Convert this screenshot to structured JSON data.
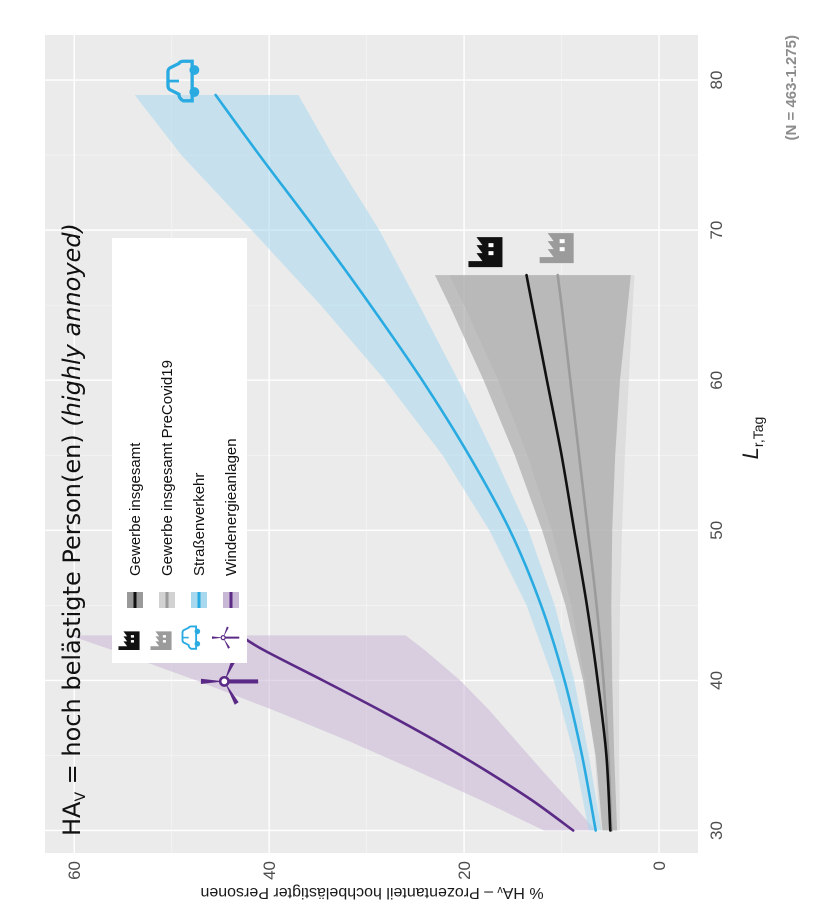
{
  "chart_data": {
    "type": "line",
    "title": {
      "prefix": "HA",
      "subscript": "V",
      "main": " =  hoch belästigte Person(en) ",
      "italic": "(highly annoyed)"
    },
    "xlabel": {
      "main": "L",
      "subscript": "r,Tag"
    },
    "ylabel": "% HAᵥ – Prozentanteil hochbelästigter Personen",
    "note": "(N = 463-1.275)",
    "xlim": [
      28.5,
      83
    ],
    "ylim": [
      -4,
      63
    ],
    "x_ticks": [
      30,
      40,
      50,
      60,
      70,
      80
    ],
    "y_ticks": [
      0,
      20,
      40,
      60
    ],
    "x_tick_labels": [
      "30",
      "40",
      "50",
      "60",
      "70",
      "80"
    ],
    "y_tick_labels": [
      "0",
      "20",
      "40",
      "60"
    ],
    "grid": true,
    "legend_position": "top-center",
    "series": [
      {
        "name": "Gewerbe insgesamt",
        "color": "#111111",
        "band_color": "#9a9a9a",
        "icon": "factory-icon",
        "x": [
          30,
          35,
          40,
          45,
          50,
          55,
          60,
          65,
          67
        ],
        "y": [
          5.0,
          5.4,
          6.3,
          7.4,
          8.7,
          10.0,
          11.5,
          13.0,
          13.6
        ],
        "lower": [
          4.3,
          4.6,
          4.8,
          4.9,
          4.8,
          4.5,
          4.0,
          3.2,
          2.9
        ],
        "upper": [
          5.8,
          6.5,
          7.8,
          9.6,
          12.0,
          14.8,
          18.0,
          21.5,
          23.0
        ]
      },
      {
        "name": "Gewerbe insgesamt PreCovid19",
        "color": "#9b9b9b",
        "band_color": "#d2d2d2",
        "icon": "factory-icon",
        "x": [
          30,
          35,
          40,
          45,
          50,
          55,
          60,
          65,
          67
        ],
        "y": [
          4.9,
          5.2,
          5.7,
          6.4,
          7.3,
          8.2,
          9.1,
          10.0,
          10.4
        ],
        "lower": [
          4.0,
          4.1,
          4.1,
          4.0,
          3.8,
          3.5,
          3.1,
          2.7,
          2.5
        ],
        "upper": [
          6.0,
          6.6,
          7.6,
          9.0,
          11.0,
          13.5,
          16.5,
          20.0,
          21.5
        ]
      },
      {
        "name": "Straßenverkehr",
        "color": "#29abe2",
        "band_color": "#a8d8ee",
        "icon": "car-icon",
        "x": [
          30,
          35,
          40,
          45,
          50,
          55,
          60,
          65,
          70,
          75,
          79
        ],
        "y": [
          6.5,
          7.9,
          9.7,
          12.1,
          15.3,
          19.5,
          24.3,
          29.6,
          35.2,
          41.0,
          45.5
        ],
        "lower": [
          5.9,
          7.2,
          8.7,
          10.7,
          13.4,
          16.9,
          20.6,
          24.6,
          28.7,
          33.5,
          37.0
        ],
        "upper": [
          7.2,
          8.7,
          10.8,
          13.6,
          17.4,
          22.2,
          28.1,
          34.7,
          41.8,
          49.0,
          53.8
        ]
      },
      {
        "name": "Windenergieanlagen",
        "color": "#5b2a86",
        "band_color": "#c9b7d6",
        "icon": "wind-turbine-icon",
        "x": [
          30,
          32,
          34,
          36,
          38,
          40,
          42,
          43
        ],
        "y": [
          8.8,
          13.0,
          17.8,
          23.0,
          28.6,
          34.5,
          40.5,
          43.0
        ],
        "lower": [
          6.5,
          9.2,
          12.0,
          14.7,
          17.4,
          20.4,
          24.0,
          26.0
        ],
        "upper": [
          11.8,
          18.2,
          25.0,
          32.0,
          39.5,
          47.5,
          56.0,
          60.5
        ]
      }
    ]
  }
}
